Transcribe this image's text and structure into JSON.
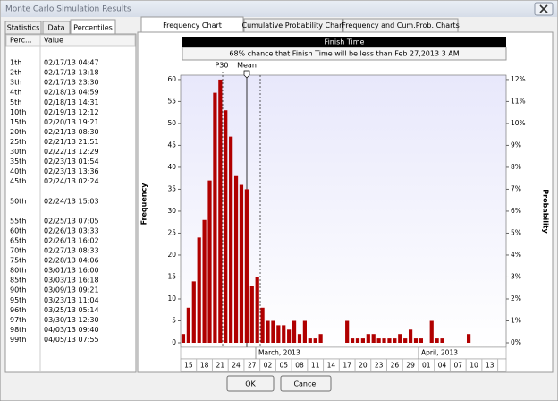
{
  "window": {
    "title": "Monte Carlo Simulation Results"
  },
  "left_tabs": [
    "Statistics",
    "Data",
    "Percentiles"
  ],
  "table": {
    "headers": [
      "Perc...",
      "Value"
    ],
    "rows": [
      [
        "1th",
        "02/17/13 04:47"
      ],
      [
        "2th",
        "02/17/13 13:18"
      ],
      [
        "3th",
        "02/17/13 23:30"
      ],
      [
        "4th",
        "02/18/13 04:59"
      ],
      [
        "5th",
        "02/18/13 14:31"
      ],
      [
        "10th",
        "02/19/13 12:12"
      ],
      [
        "15th",
        "02/20/13 19:21"
      ],
      [
        "20th",
        "02/21/13 08:30"
      ],
      [
        "25th",
        "02/21/13 21:51"
      ],
      [
        "30th",
        "02/22/13 12:29"
      ],
      [
        "35th",
        "02/23/13 01:54"
      ],
      [
        "40th",
        "02/23/13 13:36"
      ],
      [
        "45th",
        "02/24/13 02:24"
      ],
      [
        "50th",
        "02/24/13 15:03"
      ],
      [
        "55th",
        "02/25/13 07:05"
      ],
      [
        "60th",
        "02/26/13 03:33"
      ],
      [
        "65th",
        "02/26/13 16:02"
      ],
      [
        "70th",
        "02/27/13 08:33"
      ],
      [
        "75th",
        "02/28/13 04:06"
      ],
      [
        "80th",
        "03/01/13 16:00"
      ],
      [
        "85th",
        "03/03/13 16:18"
      ],
      [
        "90th",
        "03/09/13 09:21"
      ],
      [
        "95th",
        "03/23/13 11:04"
      ],
      [
        "96th",
        "03/25/13 05:14"
      ],
      [
        "97th",
        "03/30/13 12:30"
      ],
      [
        "98th",
        "04/03/13 09:40"
      ],
      [
        "99th",
        "04/05/13 07:55"
      ]
    ]
  },
  "chart_tabs": [
    "Frequency Chart",
    "Cumulative Probability Chart",
    "Frequency and Cum.Prob. Charts"
  ],
  "chart_data": {
    "type": "bar",
    "title": "Finish Time",
    "subtitle": "68% chance that Finish Time will be less than Feb 27,2013 3 AM",
    "annotations": [
      "P30",
      "Mean"
    ],
    "ylabel": "Frequency",
    "y2label": "Probability",
    "categories": [
      null,
      "15",
      null,
      null,
      "18",
      null,
      null,
      "21",
      null,
      null,
      "24",
      null,
      null,
      "27",
      null,
      null,
      "02",
      null,
      null,
      "05",
      null,
      null,
      "08",
      null,
      null,
      "11",
      null,
      null,
      "14",
      null,
      null,
      "17",
      null,
      null,
      "20",
      null,
      null,
      "23",
      null,
      null,
      "26",
      null,
      null,
      "29",
      null,
      null,
      "01",
      null,
      null,
      "04",
      null,
      null,
      "07",
      null,
      null,
      "10",
      null,
      null,
      "13",
      null
    ],
    "months": [
      "March, 2013",
      "April, 2013"
    ],
    "values": [
      2,
      8,
      14,
      24,
      28,
      37,
      57,
      60,
      53,
      47,
      38,
      36,
      35,
      13,
      15,
      8,
      5,
      5,
      4,
      4,
      3,
      5,
      2,
      5,
      1,
      1,
      2,
      0,
      0,
      0,
      0,
      5,
      1,
      1,
      1,
      2,
      2,
      1,
      1,
      1,
      1,
      2,
      1,
      3,
      1,
      1,
      0,
      5,
      1,
      1,
      0,
      0,
      0,
      0,
      2,
      0,
      0,
      0,
      0,
      0
    ],
    "color": "#b00000",
    "ylim": [
      0,
      61
    ],
    "yticks": [
      0,
      5,
      10,
      15,
      20,
      25,
      30,
      35,
      40,
      45,
      50,
      55,
      60
    ],
    "y2lim": [
      0,
      12.2
    ],
    "y2ticks": [
      {
        "value": 0,
        "label": "0%"
      },
      {
        "value": 1,
        "label": "1%"
      },
      {
        "value": 2,
        "label": "2%"
      },
      {
        "value": 3,
        "label": "3%"
      },
      {
        "value": 4,
        "label": "4%"
      },
      {
        "value": 5,
        "label": "5%"
      },
      {
        "value": 6,
        "label": "6%"
      },
      {
        "value": 7,
        "label": "7%"
      },
      {
        "value": 8,
        "label": "8%"
      },
      {
        "value": 9,
        "label": "9%"
      },
      {
        "value": 10,
        "label": "10%"
      },
      {
        "value": 11,
        "label": "11%"
      },
      {
        "value": 12,
        "label": "12%"
      }
    ]
  },
  "buttons": [
    "OK",
    "Cancel"
  ]
}
